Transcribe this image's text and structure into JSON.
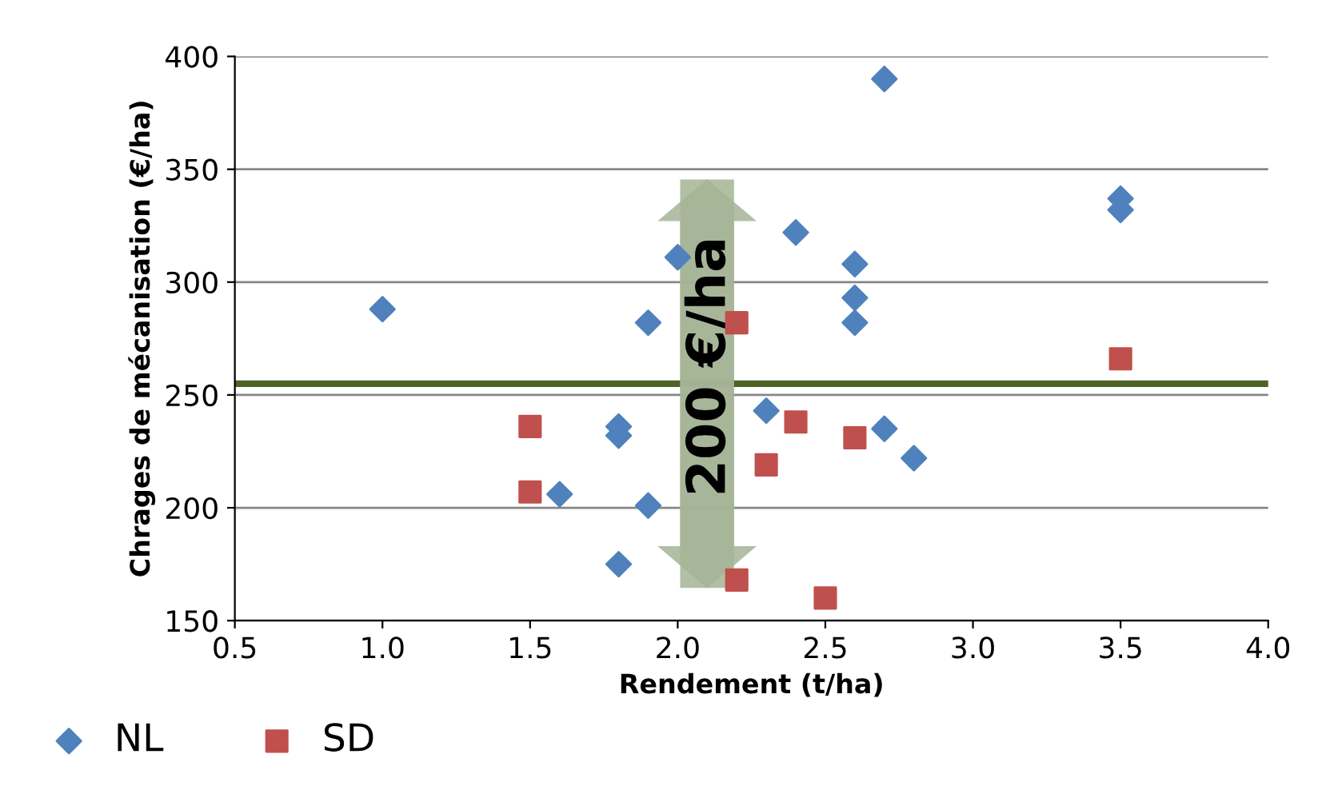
{
  "chart_data": {
    "type": "scatter",
    "xlabel": "Rendement (t/ha)",
    "ylabel": "Chrages de mécanisation (€/ha)",
    "xlim": [
      0.5,
      4.0
    ],
    "xticks": [
      {
        "value": 0.5,
        "label": "0.5"
      },
      {
        "value": 1.0,
        "label": "1.0"
      },
      {
        "value": 1.5,
        "label": "1.5"
      },
      {
        "value": 2.0,
        "label": "2.0"
      },
      {
        "value": 2.5,
        "label": "2.5"
      },
      {
        "value": 3.0,
        "label": "3.0"
      },
      {
        "value": 3.5,
        "label": "3.5"
      },
      {
        "value": 4.0,
        "label": "4.0"
      }
    ],
    "ylim": [
      150,
      400
    ],
    "yticks": [
      150,
      200,
      250,
      300,
      350,
      400
    ],
    "grid": "y",
    "legend": "bottom left",
    "series": [
      {
        "name": "NL",
        "color": "#4f81bd",
        "marker": "diamond",
        "x": [
          1.0,
          1.6,
          1.8,
          1.8,
          1.8,
          1.9,
          1.9,
          2.0,
          2.3,
          2.4,
          2.6,
          2.6,
          2.6,
          2.7,
          2.7,
          2.8,
          3.5,
          3.5
        ],
        "values": [
          288,
          206,
          236,
          232,
          175,
          282,
          201,
          311,
          243,
          322,
          308,
          293,
          282,
          390,
          235,
          222,
          337,
          332
        ]
      },
      {
        "name": "SD",
        "color": "#c0504d",
        "marker": "square",
        "x": [
          1.5,
          1.5,
          2.2,
          2.2,
          2.3,
          2.4,
          2.5,
          2.6,
          3.5
        ],
        "values": [
          236,
          207,
          282,
          168,
          219,
          238,
          160,
          231,
          266
        ]
      }
    ],
    "ref_lines": [
      {
        "axis": "y",
        "value": 255,
        "color": "#4f6228"
      }
    ],
    "annotations": [
      "200 €/ha"
    ]
  }
}
